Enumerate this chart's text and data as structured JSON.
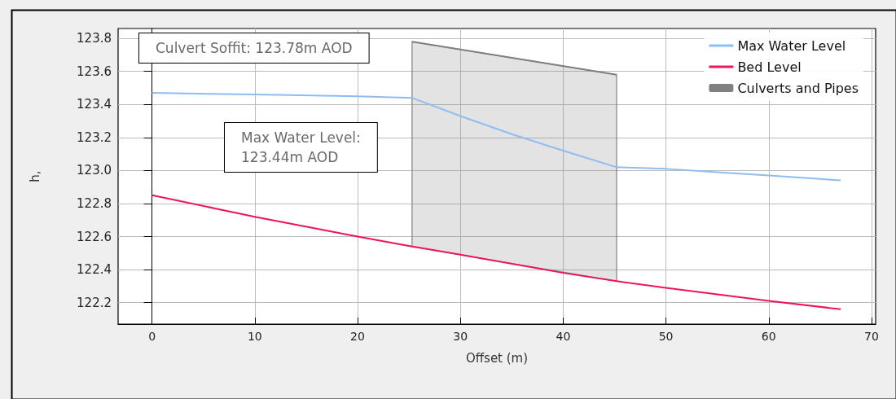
{
  "chart_data": {
    "type": "line",
    "xlabel": "Offset (m)",
    "ylabel": "h,",
    "xlim": [
      -3.3,
      70.4
    ],
    "xticks": [
      0,
      10,
      20,
      30,
      40,
      50,
      60,
      70
    ],
    "ylim": [
      122.07,
      123.86
    ],
    "yticks": [
      122.2,
      122.4,
      122.6,
      122.8,
      {
        "value": 123,
        "label": "123.0"
      },
      123.2,
      123.4,
      123.6,
      123.8
    ],
    "grid": true,
    "legend": "top right",
    "annotations": [
      "Culvert Soffit: 123.78m AOD",
      "Max Water Level:\n123.44m AOD"
    ],
    "series": [
      {
        "name": "Max Water Level",
        "color": "#8fbdf2",
        "x": [
          0,
          10,
          20,
          25.3,
          30,
          35,
          40,
          45.2,
          50,
          55,
          60,
          67
        ],
        "values": [
          123.47,
          123.46,
          123.45,
          123.44,
          123.33,
          123.22,
          123.12,
          123.02,
          123.01,
          122.99,
          122.97,
          122.94
        ]
      },
      {
        "name": "Bed Level",
        "color": "#f0145a",
        "x": [
          0,
          10,
          20,
          25.3,
          30,
          40,
          45.2,
          50,
          60,
          67
        ],
        "values": [
          122.85,
          122.72,
          122.6,
          122.54,
          122.49,
          122.38,
          122.33,
          122.29,
          122.21,
          122.16
        ]
      },
      {
        "name": "Culverts and Pipes",
        "color": "#808080",
        "x": [
          25.3,
          45.2
        ],
        "values": [
          123.78,
          123.58
        ],
        "lower": [
          122.54,
          122.33
        ],
        "upper": [
          123.78,
          123.58
        ]
      }
    ]
  }
}
